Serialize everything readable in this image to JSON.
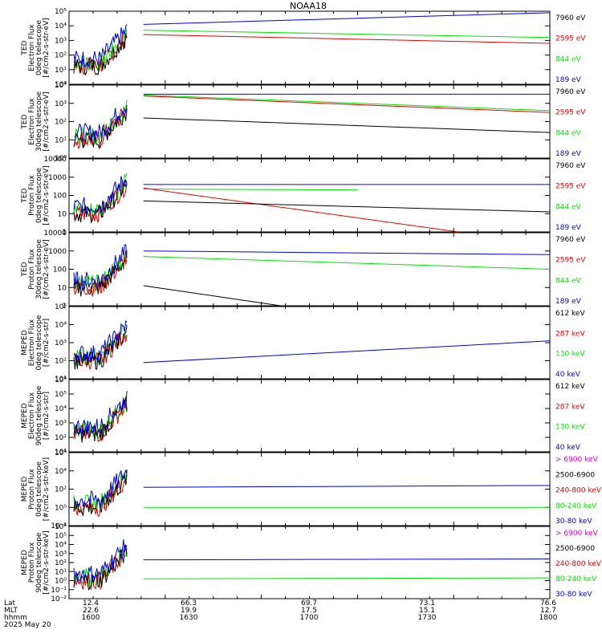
{
  "title": "NOAA18",
  "date_label": "2025 May 20",
  "footer": {
    "row_labels": [
      "Lat",
      "MLT",
      "hhmm"
    ],
    "columns": [
      {
        "lat": "12.4",
        "mlt": "22.6",
        "hhmm": "1600"
      },
      {
        "lat": "66.3",
        "mlt": "19.9",
        "hhmm": "1630"
      },
      {
        "lat": "69.7",
        "mlt": "17.5",
        "hhmm": "1700"
      },
      {
        "lat": "73.1",
        "mlt": "15.1",
        "hhmm": "1730"
      },
      {
        "lat": "76.6",
        "mlt": "12.7",
        "hhmm": "1800"
      }
    ]
  },
  "colors": {
    "blue": "#0000e6",
    "red": "#e60000",
    "green": "#00e600",
    "black": "#000000",
    "magenta": "#d200d2"
  },
  "chart_data": [
    {
      "type": "line",
      "ylabel": [
        "TED",
        "Electron Flux",
        "0deg telescope",
        "[#/cm2-s-str-eV]"
      ],
      "yscale": "log",
      "yrange_exp": [
        0,
        5
      ],
      "ytick_labels": [
        "10⁰",
        "10¹",
        "10²",
        "10³",
        "10⁴",
        "10⁵"
      ],
      "legend": [
        {
          "label": "7960 eV",
          "color": "black"
        },
        {
          "label": "2595 eV",
          "color": "red"
        },
        {
          "label": "844 eV",
          "color": "green"
        },
        {
          "label": "189 eV",
          "color": "blue"
        }
      ],
      "series": [
        {
          "color": "blue",
          "decay": [
            [
              15.5,
              4.1
            ],
            [
              100,
              4.9
            ]
          ]
        },
        {
          "color": "green",
          "decay": [
            [
              15.5,
              3.7
            ],
            [
              100,
              3.2
            ]
          ]
        },
        {
          "color": "red",
          "decay": [
            [
              15.5,
              3.4
            ],
            [
              100,
              2.8
            ]
          ]
        }
      ]
    },
    {
      "type": "line",
      "ylabel": [
        "TED",
        "Electron Flux",
        "30deg telescope",
        "[#/cm2-s-str-eV]"
      ],
      "yscale": "log",
      "yrange_exp": [
        0,
        4
      ],
      "ytick_labels": [
        "10⁰",
        "10¹",
        "10²",
        "10³",
        "10⁴"
      ],
      "legend": [
        {
          "label": "7960 eV",
          "color": "black"
        },
        {
          "label": "2595 eV",
          "color": "red"
        },
        {
          "label": "844 eV",
          "color": "green"
        },
        {
          "label": "189 eV",
          "color": "blue"
        }
      ],
      "series": [
        {
          "color": "blue",
          "decay": [
            [
              15.5,
              3.5
            ],
            [
              100,
              3.5
            ]
          ]
        },
        {
          "color": "red",
          "decay": [
            [
              15.5,
              3.4
            ],
            [
              100,
              2.5
            ]
          ]
        },
        {
          "color": "green",
          "decay": [
            [
              15.5,
              3.45
            ],
            [
              100,
              2.6
            ]
          ]
        },
        {
          "color": "black",
          "decay": [
            [
              15.5,
              2.2
            ],
            [
              100,
              1.4
            ]
          ]
        }
      ]
    },
    {
      "type": "line",
      "ylabel": [
        "TED",
        "Proton Flux",
        "0deg telescope",
        "[#/cm2-s-str-eV]"
      ],
      "yscale": "log",
      "yrange_exp": [
        0,
        4
      ],
      "ytick_labels": [
        "1",
        "10",
        "100",
        "1000",
        "10000"
      ],
      "legend": [
        {
          "label": "7960 eV",
          "color": "black"
        },
        {
          "label": "2595 eV",
          "color": "red"
        },
        {
          "label": "844 eV",
          "color": "green"
        },
        {
          "label": "189 eV",
          "color": "blue"
        }
      ],
      "series": [
        {
          "color": "blue",
          "decay": [
            [
              15.5,
              2.6
            ],
            [
              100,
              2.6
            ]
          ]
        },
        {
          "color": "green",
          "decay": [
            [
              15.5,
              2.35
            ],
            [
              60,
              2.3
            ]
          ]
        },
        {
          "color": "red",
          "decay": [
            [
              15.5,
              2.4
            ],
            [
              81,
              0
            ]
          ]
        },
        {
          "color": "black",
          "decay": [
            [
              15.5,
              1.7
            ],
            [
              100,
              1.1
            ]
          ]
        }
      ]
    },
    {
      "type": "line",
      "ylabel": [
        "TED",
        "Proton Flux",
        "30deg telescope",
        "[#/cm2-s-str-eV]"
      ],
      "yscale": "log",
      "yrange_exp": [
        0,
        4
      ],
      "ytick_labels": [
        "1",
        "10",
        "100",
        "1000",
        "10000"
      ],
      "legend": [
        {
          "label": "7960 eV",
          "color": "black"
        },
        {
          "label": "2595 eV",
          "color": "red"
        },
        {
          "label": "844 eV",
          "color": "green"
        },
        {
          "label": "189 eV",
          "color": "blue"
        }
      ],
      "series": [
        {
          "color": "blue",
          "decay": [
            [
              15.5,
              3.0
            ],
            [
              100,
              2.8
            ]
          ]
        },
        {
          "color": "green",
          "decay": [
            [
              15.5,
              2.7
            ],
            [
              100,
              2.0
            ]
          ]
        },
        {
          "color": "black",
          "decay": [
            [
              15.5,
              1.1
            ],
            [
              44,
              0
            ]
          ]
        }
      ]
    },
    {
      "type": "line",
      "ylabel": [
        "MEPED",
        "Electron Flux",
        "0deg telescope",
        "[#/cm2-s-str]"
      ],
      "yscale": "log",
      "yrange_exp": [
        1,
        5
      ],
      "ytick_labels": [
        "10¹",
        "10²",
        "10³",
        "10⁴",
        "10⁵"
      ],
      "legend": [
        {
          "label": "612 keV",
          "color": "black"
        },
        {
          "label": "287 keV",
          "color": "red"
        },
        {
          "label": "130 keV",
          "color": "green"
        },
        {
          "label": "40 keV",
          "color": "blue"
        }
      ],
      "series": [
        {
          "color": "blue",
          "decay": [
            [
              15.5,
              1.9
            ],
            [
              100,
              3.1
            ]
          ]
        }
      ]
    },
    {
      "type": "line",
      "ylabel": [
        "MEPED",
        "Electron Flux",
        "90deg telescope",
        "[#/cm2-s-str]"
      ],
      "yscale": "log",
      "yrange_exp": [
        1,
        6
      ],
      "ytick_labels": [
        "10¹",
        "10²",
        "10³",
        "10⁴",
        "10⁵",
        "10⁶"
      ],
      "legend": [
        {
          "label": "612 keV",
          "color": "black"
        },
        {
          "label": "287 keV",
          "color": "red"
        },
        {
          "label": "130 keV",
          "color": "green"
        },
        {
          "label": "40 keV",
          "color": "blue"
        }
      ],
      "series": []
    },
    {
      "type": "line",
      "ylabel": [
        "MEPED",
        "Proton Flux",
        "0deg telescope",
        "[#/cm2-s-str-keV]"
      ],
      "yscale": "log",
      "yrange_exp": [
        -2,
        6
      ],
      "ytick_labels": [
        "10⁻²",
        "10⁰",
        "10²",
        "10⁴",
        "10⁶"
      ],
      "ytick_exps": [
        -2,
        0,
        2,
        4,
        6
      ],
      "legend": [
        {
          "label": "> 6900 keV",
          "color": "magenta"
        },
        {
          "label": "2500-6900",
          "color": "black"
        },
        {
          "label": "240-800 keV",
          "color": "red"
        },
        {
          "label": "80-240 keV",
          "color": "green"
        },
        {
          "label": "30-80 keV",
          "color": "blue"
        }
      ],
      "series": [
        {
          "color": "blue",
          "decay": [
            [
              15.5,
              2.2
            ],
            [
              100,
              2.4
            ]
          ]
        },
        {
          "color": "green",
          "decay": [
            [
              15.5,
              0.0
            ],
            [
              100,
              0.0
            ]
          ]
        }
      ]
    },
    {
      "type": "line",
      "ylabel": [
        "MEPED",
        "Proton Flux",
        "90deg telescope",
        "[#/cm2-s-str-keV]"
      ],
      "yscale": "log",
      "yrange_exp": [
        -2,
        6
      ],
      "ytick_labels": [
        "10⁻²",
        "10⁻¹",
        "10⁰",
        "10¹",
        "10²",
        "10³",
        "10⁴",
        "10⁵",
        "10⁶"
      ],
      "legend": [
        {
          "label": "> 6900 keV",
          "color": "magenta"
        },
        {
          "label": "2500-6900",
          "color": "black"
        },
        {
          "label": "240-800 keV",
          "color": "red"
        },
        {
          "label": "80-240 keV",
          "color": "green"
        },
        {
          "label": "30-80 keV",
          "color": "blue"
        }
      ],
      "series": [
        {
          "color": "blue",
          "decay": [
            [
              15.5,
              2.3
            ],
            [
              100,
              2.4
            ]
          ]
        },
        {
          "color": "green",
          "decay": [
            [
              15.5,
              0.2
            ],
            [
              100,
              0.3
            ]
          ]
        }
      ]
    }
  ]
}
